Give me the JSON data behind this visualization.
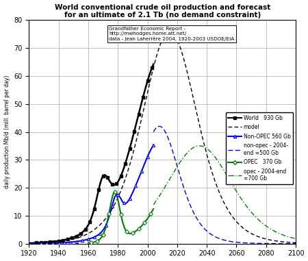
{
  "title_line1": "World conventional crude oil production and forecast",
  "title_line2": "for an ultimate of 2.1 Tb (no demand constraint)",
  "source_text": "Grandfather Economic Report -\nhttp://mwhodges.home.att.net/\ndata - Jean Laherrère 2004, 1920-2003 USDOE/EIA",
  "ylabel": "daily production Mb/d (mill. barrel per day)",
  "xlim": [
    1920,
    2100
  ],
  "ylim": [
    0,
    80
  ],
  "xticks": [
    1920,
    1940,
    1960,
    1980,
    2000,
    2020,
    2040,
    2060,
    2080,
    2100
  ],
  "yticks": [
    0,
    10,
    20,
    30,
    40,
    50,
    60,
    70,
    80
  ],
  "legend_entries": [
    "World   930 Gb",
    "model",
    "Non-OPEC 560 Gb",
    "non-opec - 2004-\nend =500 Gb",
    "OPEC   370 Gb",
    "opec - 2004-end\n=700 Gb"
  ],
  "background_color": "#ffffff",
  "grid_color": "#aaaaaa"
}
